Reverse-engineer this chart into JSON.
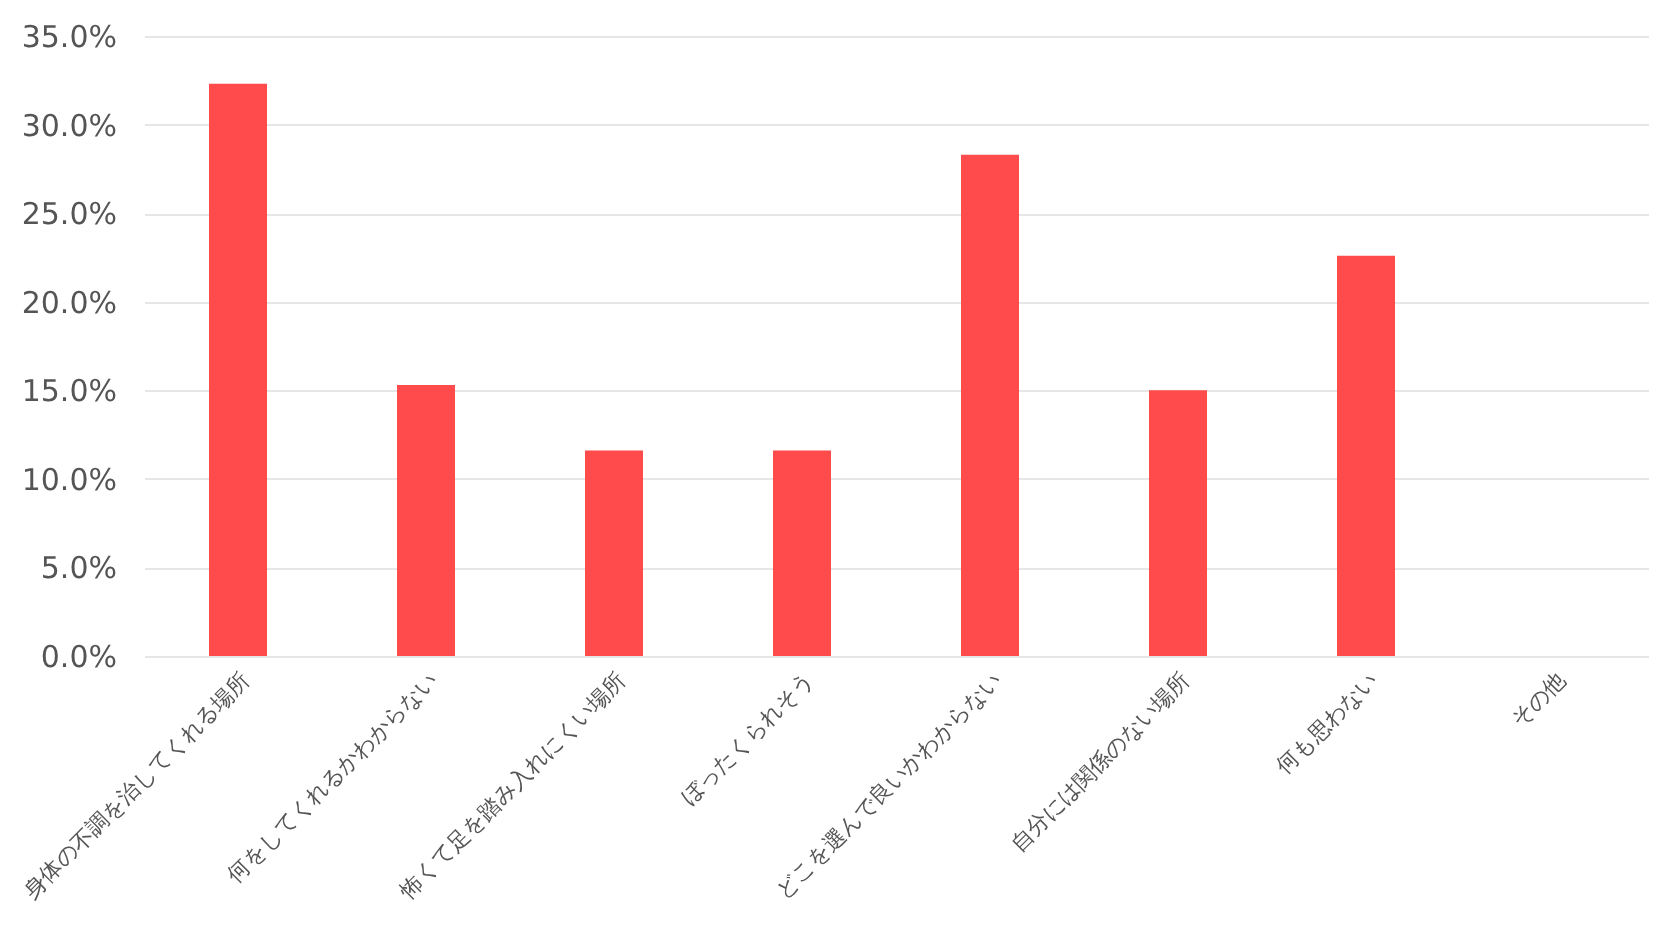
{
  "chart_data": {
    "type": "bar",
    "categories": [
      "身体の不調を治してくれる場所",
      "何をしてくれるかわからない",
      "怖くて足を踏み入れにくい場所",
      "ぼったくられそう",
      "どこを選んで良いかわからない",
      "自分には関係のない場所",
      "何も思わない",
      "その他"
    ],
    "values": [
      32.3,
      15.3,
      11.6,
      11.6,
      28.3,
      15.0,
      22.6,
      0
    ],
    "color": "#ff4b4b",
    "ylim": [
      0,
      35
    ],
    "yticks": [
      {
        "value": 0,
        "label": "0.0%"
      },
      {
        "value": 5,
        "label": "5.0%"
      },
      {
        "value": 10,
        "label": "10.0%"
      },
      {
        "value": 15,
        "label": "15.0%"
      },
      {
        "value": 20,
        "label": "20.0%"
      },
      {
        "value": 25,
        "label": "25.0%"
      },
      {
        "value": 30,
        "label": "30.0%"
      },
      {
        "value": 35,
        "label": "35.0%"
      }
    ],
    "grid": "y"
  }
}
